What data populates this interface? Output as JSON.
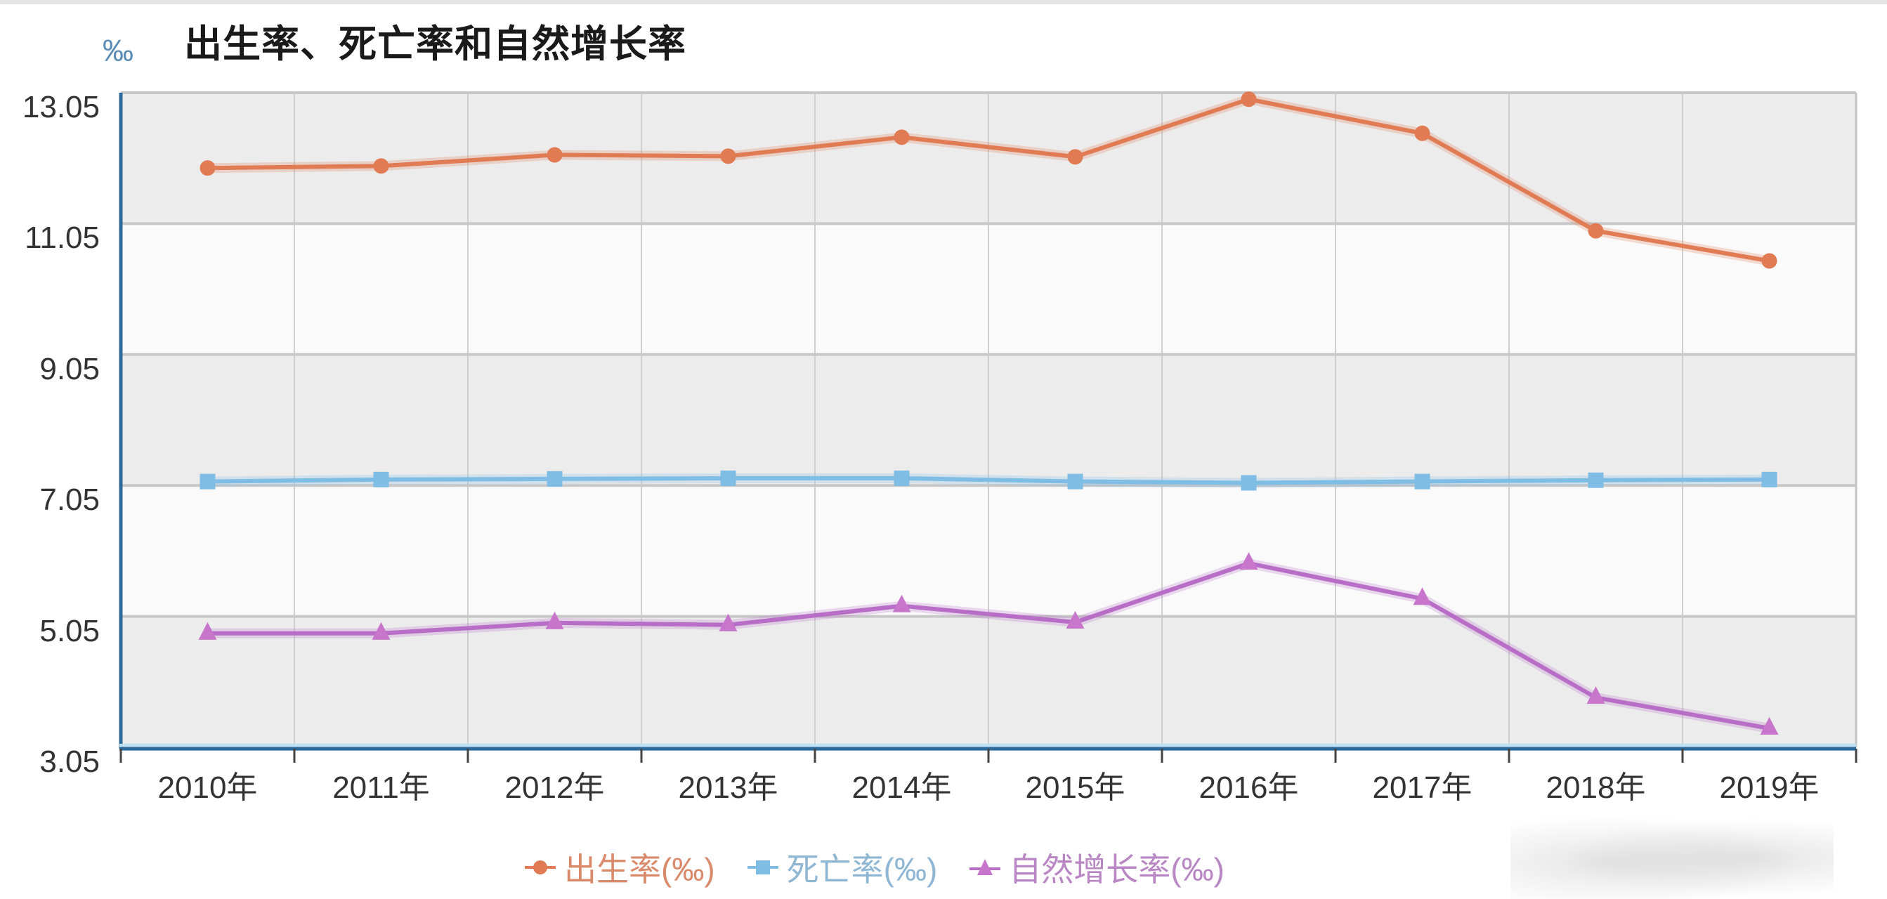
{
  "chart_data": {
    "type": "line",
    "title": "出生率、死亡率和自然增长率",
    "ylabel": "‰",
    "xlabel": "",
    "categories": [
      "2010年",
      "2011年",
      "2012年",
      "2013年",
      "2014年",
      "2015年",
      "2016年",
      "2017年",
      "2018年",
      "2019年"
    ],
    "yticks": [
      "13.05",
      "11.05",
      "9.05",
      "7.05",
      "5.05",
      "3.05"
    ],
    "ylim": [
      3.05,
      13.05
    ],
    "grid": true,
    "legend_position": "bottom-center",
    "series": [
      {
        "name": "出生率(‰)",
        "marker": "circle",
        "color": "#e07b54",
        "values": [
          11.9,
          11.93,
          12.1,
          12.08,
          12.37,
          12.07,
          12.95,
          12.43,
          10.94,
          10.48
        ]
      },
      {
        "name": "死亡率(‰)",
        "marker": "square",
        "color": "#7fbde4",
        "values": [
          7.11,
          7.14,
          7.15,
          7.16,
          7.16,
          7.11,
          7.09,
          7.11,
          7.13,
          7.14
        ]
      },
      {
        "name": "自然增长率(‰)",
        "marker": "triangle",
        "color": "#b86ec6",
        "values": [
          4.79,
          4.79,
          4.95,
          4.92,
          5.21,
          4.96,
          5.86,
          5.32,
          3.81,
          3.34
        ]
      }
    ]
  },
  "header": {
    "title": "出生率、死亡率和自然增长率",
    "unit_label": "‰"
  },
  "legend": {
    "items": [
      {
        "label": "出生率(‰)",
        "color": "#e07b54",
        "text_color": "#d98a6a"
      },
      {
        "label": "死亡率(‰)",
        "color": "#7fbde4",
        "text_color": "#8fb7d4"
      },
      {
        "label": "自然增长率(‰)",
        "color": "#b86ec6",
        "text_color": "#b887c4"
      }
    ]
  },
  "colors": {
    "axis": "#2e6a9a",
    "band_gray": "#ececec",
    "band_white": "#fafafa",
    "grid": "#c8c8c8"
  }
}
